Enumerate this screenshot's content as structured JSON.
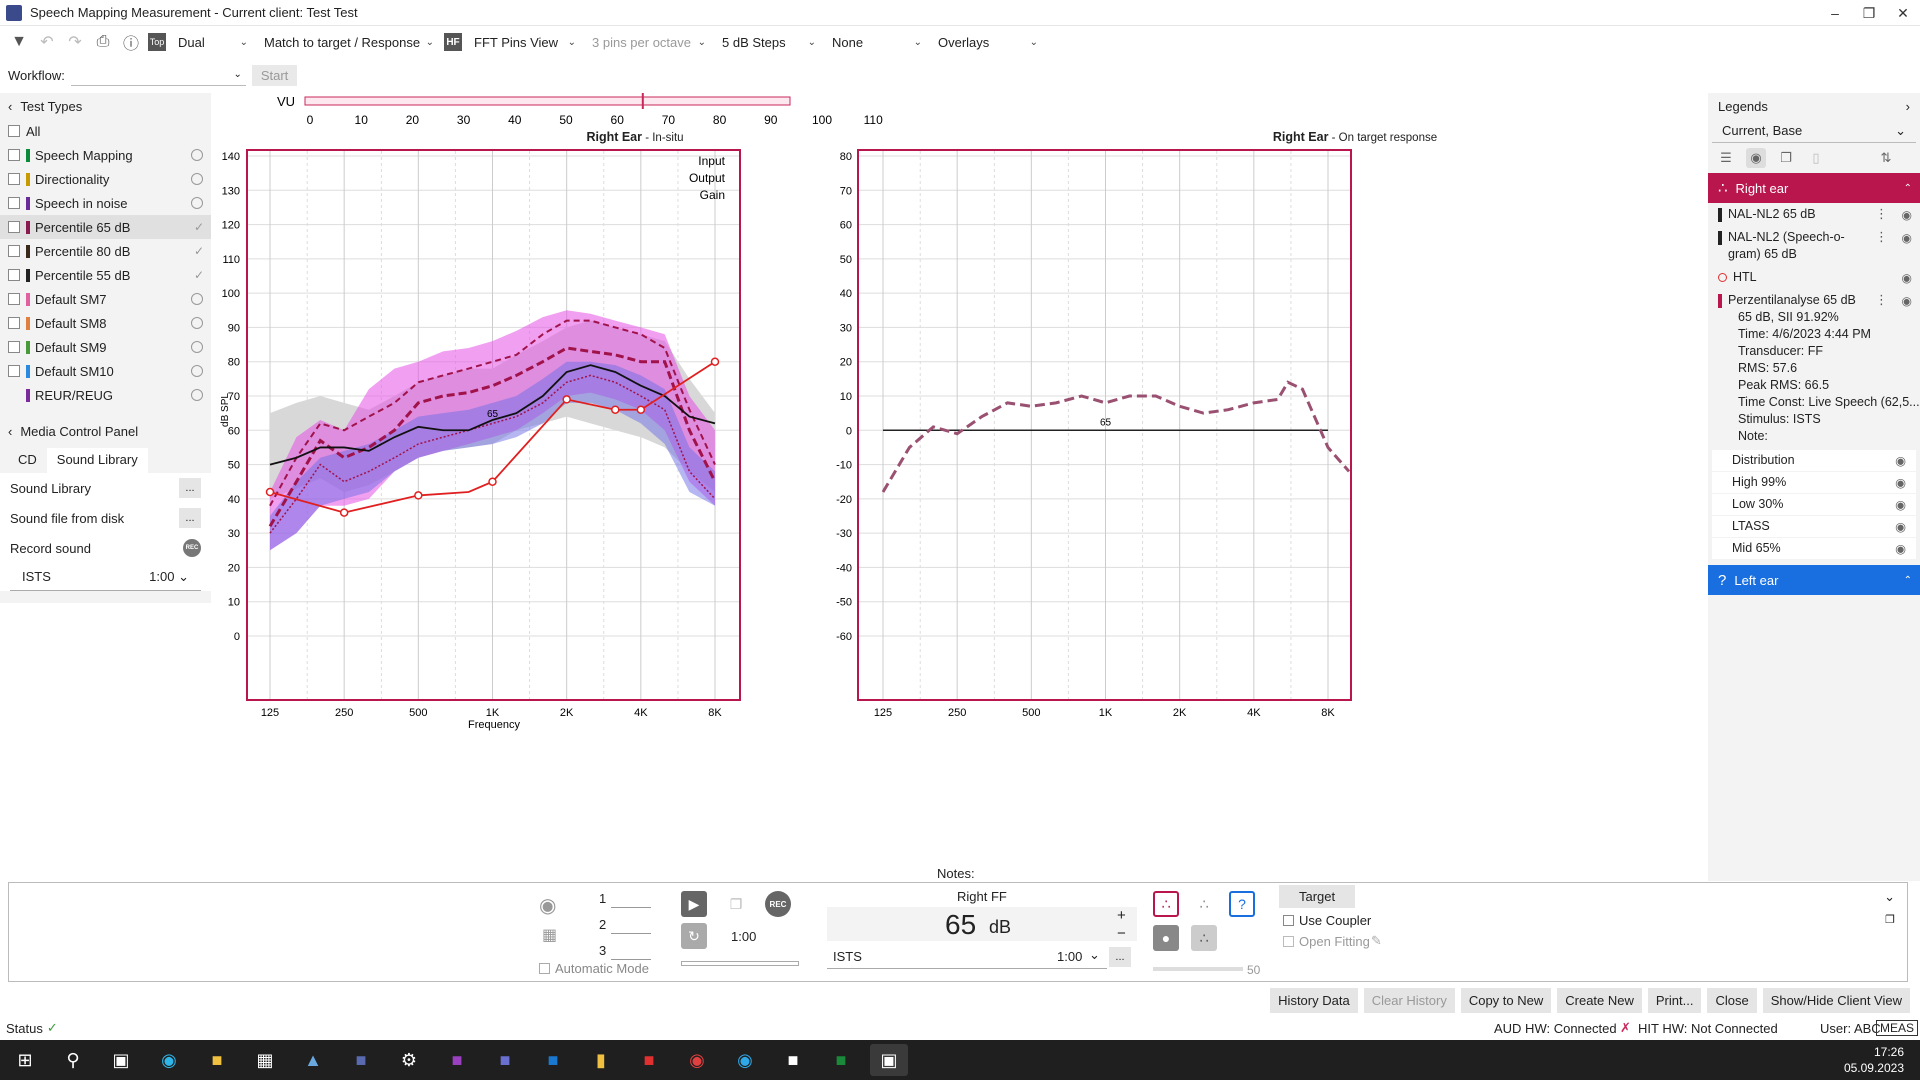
{
  "window": {
    "title": "Speech Mapping Measurement - Current client: Test Test"
  },
  "toolbar": {
    "mode": "Dual",
    "match": "Match to target / Response",
    "hf_label": "HF",
    "view": "FFT Pins View",
    "pins": "3 pins per octave",
    "steps": "5 dB Steps",
    "none": "None",
    "overlays": "Overlays"
  },
  "workflow": {
    "label": "Workflow:",
    "start": "Start"
  },
  "test_types": {
    "header": "Test Types",
    "all": "All",
    "items": [
      {
        "label": "Speech Mapping",
        "color": "#0a8a3a"
      },
      {
        "label": "Directionality",
        "color": "#c79a00"
      },
      {
        "label": "Speech in noise",
        "color": "#6a2a9a"
      },
      {
        "label": "Percentile 65 dB",
        "color": "#8a1a50"
      },
      {
        "label": "Percentile 80 dB",
        "color": "#3a2a1a"
      },
      {
        "label": "Percentile 55 dB",
        "color": "#222222"
      },
      {
        "label": "Default SM7",
        "color": "#e060a0"
      },
      {
        "label": "Default SM8",
        "color": "#e08040"
      },
      {
        "label": "Default SM9",
        "color": "#4a9a3a"
      },
      {
        "label": "Default SM10",
        "color": "#2a8ae0"
      },
      {
        "label": "REUR/REUG",
        "color": "#7a2a9a"
      }
    ]
  },
  "media": {
    "header": "Media Control Panel",
    "tab_cd": "CD",
    "tab_lib": "Sound Library",
    "sound_library": "Sound Library",
    "sound_file": "Sound file from disk",
    "record": "Record sound",
    "rec": "REC",
    "stimulus": "ISTS",
    "duration": "1:00",
    "dots": "..."
  },
  "vu": {
    "label": "VU",
    "ticks": [
      "0",
      "10",
      "20",
      "30",
      "40",
      "50",
      "60",
      "70",
      "80",
      "90",
      "100",
      "110"
    ],
    "value": 65
  },
  "chart_left": {
    "title": "Right Ear",
    "subtitle": "In-situ",
    "legend": [
      "Input",
      "Output",
      "Gain"
    ],
    "ylabel": "dB SPL",
    "xlabel": "Frequency",
    "yticks": [
      "140",
      "130",
      "120",
      "110",
      "100",
      "90",
      "80",
      "70",
      "60",
      "50",
      "40",
      "30",
      "20",
      "10",
      "0"
    ],
    "xticks": [
      "125",
      "250",
      "500",
      "1K",
      "2K",
      "4K",
      "8K"
    ],
    "marker": "65"
  },
  "chart_right": {
    "title": "Right Ear",
    "subtitle": "On target response",
    "yticks": [
      "80",
      "70",
      "60",
      "50",
      "40",
      "30",
      "20",
      "10",
      "0",
      "-10",
      "-20",
      "-30",
      "-40",
      "-50",
      "-60"
    ],
    "xticks": [
      "125",
      "250",
      "500",
      "1K",
      "2K",
      "4K",
      "8K"
    ],
    "marker": "65"
  },
  "chart_data": [
    {
      "type": "line",
      "title": "Right Ear",
      "xlabel": "Frequency",
      "ylabel": "dB SPL",
      "ylim": [
        0,
        140
      ],
      "x": [
        125,
        160,
        200,
        250,
        315,
        400,
        500,
        630,
        800,
        1000,
        1250,
        1600,
        2000,
        2500,
        3150,
        4000,
        5000,
        6300,
        8000
      ],
      "series": [
        {
          "name": "HTL",
          "values": [
            42,
            null,
            null,
            36,
            null,
            null,
            41,
            null,
            42,
            45,
            null,
            null,
            69,
            null,
            66,
            66,
            null,
            null,
            80
          ]
        },
        {
          "name": "Percentilanalyse 65 dB",
          "values": [
            50,
            52,
            55,
            55,
            54,
            58,
            61,
            60,
            60,
            63,
            65,
            70,
            77,
            79,
            77,
            73,
            70,
            64,
            62
          ]
        },
        {
          "name": "NAL-NL2 65 dB",
          "values": [
            32,
            45,
            57,
            52,
            55,
            60,
            68,
            70,
            71,
            73,
            76,
            80,
            84,
            83,
            82,
            80,
            80,
            60,
            45
          ]
        }
      ]
    },
    {
      "type": "line",
      "title": "Right Ear",
      "ylim": [
        -60,
        80
      ],
      "x": [
        125,
        160,
        200,
        250,
        315,
        400,
        500,
        630,
        800,
        1000,
        1250,
        1600,
        2000,
        2500,
        3150,
        4000,
        5000,
        5500,
        6300,
        8000,
        10000
      ],
      "series": [
        {
          "name": "On target response",
          "values": [
            -18,
            -5,
            1,
            -1,
            4,
            8,
            7,
            8,
            10,
            8,
            10,
            10,
            7,
            5,
            6,
            8,
            9,
            14,
            12,
            -5,
            -12
          ]
        }
      ]
    }
  ],
  "legends": {
    "header": "Legends",
    "selection": "Current, Base",
    "right_ear": "Right ear",
    "left_ear": "Left ear",
    "items": [
      {
        "label": "NAL-NL2 65 dB",
        "color": "#222222"
      },
      {
        "label": "NAL-NL2 (Speech-o-gram) 65 dB",
        "color": "#222222"
      },
      {
        "label": "HTL",
        "color": "#e03030"
      }
    ],
    "measurement": {
      "label": "Perzentilanalyse 65 dB",
      "line1": "65 dB, SII 91.92%",
      "time": "Time: 4/6/2023 4:44 PM",
      "transducer": "Transducer: FF",
      "rms": "RMS: 57.6",
      "peak": "Peak RMS: 66.5",
      "timeconst": "Time Const: Live Speech (62,5...",
      "stimulus": "Stimulus: ISTS",
      "note": "Note:"
    },
    "subitems": [
      "Distribution",
      "High 99%",
      "Low 30%",
      "LTASS",
      "Mid 65%"
    ]
  },
  "bottom": {
    "notes": "Notes:",
    "slots": [
      "1",
      "2",
      "3"
    ],
    "auto_mode": "Automatic Mode",
    "time": "1:00",
    "channel": "Right FF",
    "level": "65",
    "unit": "dB",
    "stimulus": "ISTS",
    "duration": "1:00",
    "target": "Target",
    "use_coupler": "Use Coupler",
    "open_fitting": "Open Fitting",
    "slider_val": "50",
    "plus": "+",
    "minus": "−",
    "rec": "REC",
    "dots": "..."
  },
  "buttons": [
    "History Data",
    "Clear History",
    "Copy to New",
    "Create New",
    "Print...",
    "Close",
    "Show/Hide Client View"
  ],
  "status": {
    "label": "Status",
    "aud": "AUD HW: Connected",
    "hit": "HIT HW: Not Connected",
    "user": "User: ABC",
    "meas": "MEAS"
  },
  "taskbar": {
    "time": "17:26",
    "date": "05.09.2023"
  }
}
